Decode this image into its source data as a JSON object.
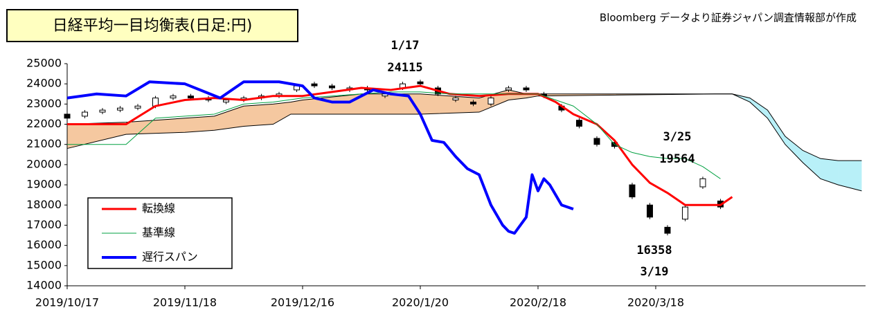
{
  "chart_data": {
    "type": "candlestick",
    "title": "日経平均一目均衡表(日足:円)",
    "subtitle": "Bloomberg データより証券ジャパン調査情報部が作成",
    "xlim": [
      0,
      135.65
    ],
    "xticks": [
      {
        "value": 0,
        "label": "2019/10/17"
      },
      {
        "value": 20,
        "label": "2019/11/18"
      },
      {
        "value": 40,
        "label": "2019/12/16"
      },
      {
        "value": 60,
        "label": "2020/1/20"
      },
      {
        "value": 80,
        "label": "2020/2/18"
      },
      {
        "value": 100,
        "label": "2020/3/18"
      }
    ],
    "ylim": [
      14000,
      25000
    ],
    "yticks": [
      14000,
      15000,
      16000,
      17000,
      18000,
      19000,
      20000,
      21000,
      22000,
      23000,
      24000,
      25000
    ],
    "candles": {
      "x": [
        0,
        3,
        6,
        9,
        12,
        15,
        18,
        21,
        24,
        27,
        30,
        33,
        36,
        39,
        42,
        45,
        48,
        51,
        54,
        57,
        60,
        63,
        66,
        69,
        72,
        75,
        78,
        81,
        84,
        87,
        90,
        93,
        96,
        99,
        102,
        105,
        108,
        111
      ],
      "open": [
        22500,
        22400,
        22600,
        22700,
        22800,
        22900,
        23300,
        23400,
        23300,
        23100,
        23200,
        23300,
        23400,
        23700,
        24000,
        23900,
        23700,
        23800,
        23400,
        23800,
        24100,
        23800,
        23200,
        23100,
        23000,
        23700,
        23800,
        23500,
        22900,
        22200,
        21300,
        21100,
        19000,
        18000,
        16900,
        17300,
        18900,
        18200
      ],
      "close": [
        22300,
        22600,
        22700,
        22800,
        22900,
        23300,
        23400,
        23300,
        23200,
        23200,
        23300,
        23400,
        23500,
        23900,
        23900,
        23800,
        23800,
        23700,
        23500,
        24000,
        24000,
        23500,
        23300,
        23000,
        23300,
        23800,
        23700,
        23400,
        22700,
        21900,
        21000,
        20900,
        18400,
        17400,
        16600,
        17900,
        19300,
        17900
      ]
    },
    "series": [
      {
        "name": "転換線",
        "color": "#ff0000",
        "width": 3,
        "x": [
          0,
          10,
          15,
          20,
          25,
          30,
          35,
          40,
          45,
          50,
          55,
          60,
          65,
          70,
          75,
          80,
          83,
          86,
          90,
          93,
          96,
          99,
          102,
          105,
          108,
          111,
          113
        ],
        "values": [
          22000,
          22000,
          22900,
          23200,
          23300,
          23200,
          23400,
          23400,
          23600,
          23800,
          23700,
          23900,
          23500,
          23400,
          23500,
          23500,
          23100,
          22500,
          22000,
          21200,
          20000,
          19100,
          18600,
          18000,
          18000,
          18000,
          18400
        ]
      },
      {
        "name": "基準線",
        "color": "#00a040",
        "width": 1,
        "x": [
          0,
          10,
          15,
          20,
          25,
          30,
          35,
          40,
          45,
          50,
          55,
          60,
          65,
          70,
          75,
          80,
          83,
          86,
          90,
          93,
          96,
          99,
          102,
          105,
          108,
          111
        ],
        "values": [
          21000,
          21000,
          22300,
          22400,
          22500,
          23000,
          23100,
          23300,
          23400,
          23500,
          23600,
          23600,
          23500,
          23500,
          23500,
          23500,
          23200,
          22900,
          22000,
          21000,
          20600,
          20400,
          20300,
          20300,
          19900,
          19300
        ]
      },
      {
        "name": "遅行スパン",
        "color": "#0000ff",
        "width": 4,
        "x": [
          0,
          5,
          10,
          14,
          20,
          26,
          30,
          36,
          40,
          42,
          45,
          48,
          52,
          55,
          58,
          60,
          62,
          64,
          66,
          68,
          70,
          72,
          74,
          75,
          76,
          78,
          79,
          80,
          81,
          82,
          84,
          86
        ],
        "values": [
          23300,
          23500,
          23400,
          24100,
          24000,
          23300,
          24100,
          24100,
          23900,
          23300,
          23100,
          23100,
          23700,
          23500,
          23400,
          22500,
          21200,
          21100,
          20400,
          19800,
          19500,
          18000,
          17000,
          16700,
          16600,
          17400,
          19500,
          18700,
          19300,
          19000,
          18000,
          17800
        ]
      }
    ],
    "cloud": {
      "x": [
        0,
        10,
        20,
        25,
        30,
        35,
        38,
        40,
        50,
        60,
        70,
        75,
        78,
        80,
        110,
        113,
        116,
        119,
        122,
        125,
        128,
        131,
        135
      ],
      "span_a": [
        22000,
        22100,
        22300,
        22400,
        22900,
        23000,
        23100,
        23200,
        23500,
        23500,
        23300,
        23700,
        23500,
        23500,
        23500,
        23500,
        23100,
        22300,
        21000,
        20100,
        19300,
        19000,
        18700
      ],
      "span_b": [
        20800,
        21500,
        21600,
        21700,
        21900,
        22000,
        22500,
        22500,
        22500,
        22500,
        22600,
        23200,
        23300,
        23400,
        23500,
        23500,
        23300,
        22700,
        21400,
        20700,
        20300,
        20200,
        20200
      ],
      "up_color": "#f5c8a0",
      "down_color": "#b8f0f8"
    },
    "annotations": [
      "1/17",
      "24115",
      "3/25",
      "19564",
      "16358",
      "3/19"
    ]
  }
}
